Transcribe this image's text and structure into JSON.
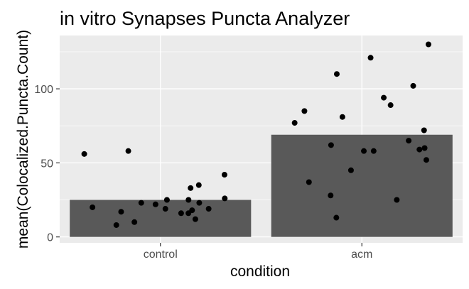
{
  "chart_data": {
    "type": "bar",
    "title": "in vitro Synapses Puncta Analyzer",
    "xlabel": "condition",
    "ylabel": "mean(Colocalized.Puncta.Count)",
    "categories": [
      "control",
      "acm"
    ],
    "values": [
      25,
      69
    ],
    "ylim": [
      -4,
      136
    ],
    "yticks": [
      0,
      50,
      100
    ],
    "grid": true,
    "points": [
      {
        "category": "control",
        "values": [
          56,
          42,
          58,
          8,
          12,
          19,
          10,
          35,
          23,
          25,
          25,
          16,
          19,
          17,
          23,
          18,
          33,
          20,
          16,
          22,
          26
        ]
      },
      {
        "category": "acm",
        "values": [
          65,
          85,
          58,
          52,
          89,
          94,
          58,
          60,
          72,
          81,
          110,
          102,
          13,
          37,
          62,
          45,
          28,
          130,
          121,
          25,
          59,
          77
        ]
      }
    ],
    "colors": {
      "panel": "#ebebeb",
      "grid_major": "#ffffff",
      "bar": "#595959",
      "point": "#000000",
      "tick_text": "#4d4d4d",
      "tick_mark": "#333333"
    }
  }
}
